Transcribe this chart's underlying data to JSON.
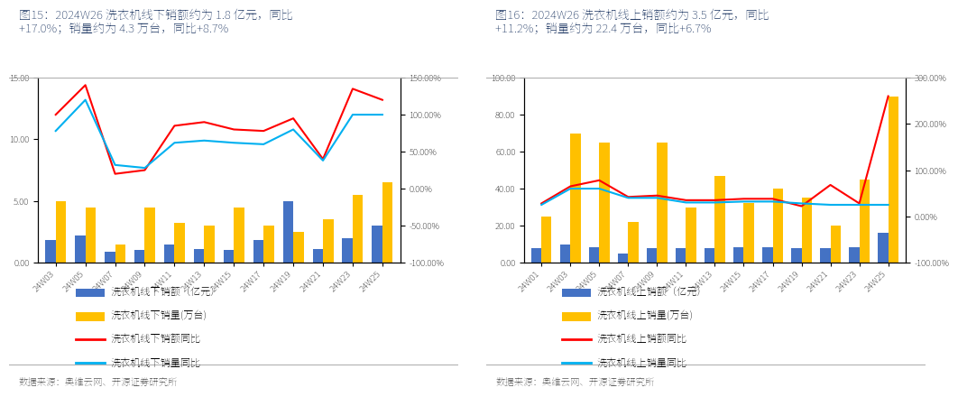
{
  "chart1": {
    "title": "图15：2024W26 洗衣机线下销额约为 1.8 亿元，同比\n+17.0%；销量约为 4.3 万台，同比+8.7%",
    "x_labels": [
      "24W03",
      "24W05",
      "24W07",
      "24W09",
      "24W11",
      "24W13",
      "24W15",
      "24W17",
      "24W19",
      "24W21",
      "24W23",
      "24W25"
    ],
    "sales_value": [
      1.8,
      2.2,
      0.9,
      1.0,
      1.5,
      1.1,
      1.0,
      1.8,
      5.0,
      1.1,
      2.0,
      3.0
    ],
    "sales_volume": [
      5.0,
      4.5,
      1.5,
      4.5,
      3.2,
      3.0,
      4.5,
      3.0,
      2.5,
      3.5,
      5.5,
      6.5
    ],
    "yoy_value": [
      100.0,
      140.0,
      20.0,
      25.0,
      85.0,
      90.0,
      80.0,
      78.0,
      95.0,
      40.0,
      135.0,
      120.0
    ],
    "yoy_volume": [
      78.0,
      120.0,
      32.0,
      28.0,
      62.0,
      65.0,
      62.0,
      60.0,
      80.0,
      38.0,
      100.0,
      100.0
    ],
    "ylim_left": [
      0,
      15
    ],
    "ylim_right": [
      -100,
      150
    ],
    "yticks_left": [
      0.0,
      5.0,
      10.0,
      15.0
    ],
    "ytick_labels_left": [
      "0.00",
      "5.00",
      "10.00",
      "15.00"
    ],
    "yticks_right": [
      -100,
      -50,
      0,
      50,
      100,
      150
    ],
    "ytick_labels_right": [
      "-100.00%",
      "-50.00%",
      "0.00%",
      "50.00%",
      "100.00%",
      "150.00%"
    ],
    "legend": [
      "洗衣机线下销额（亿元）",
      "洗衣机线下销量(万台)",
      "洗衣机线下销额同比",
      "洗衣机线下销量同比"
    ],
    "source": "数据来源：奥维云网、开源证券研究所",
    "bar_color_value": "#4472C4",
    "bar_color_volume": "#FFC000",
    "line_color_yoy_value": "#FF0000",
    "line_color_yoy_volume": "#00B0F0"
  },
  "chart2": {
    "title": "图16：2024W26 洗衣机线上销额约为 3.5 亿元，同比\n+11.2%；销量约为 22.4 万台，同比+6.7%",
    "x_labels": [
      "24W01",
      "24W03",
      "24W05",
      "24W07",
      "24W09",
      "24W11",
      "24W13",
      "24W15",
      "24W17",
      "24W19",
      "24W21",
      "24W23",
      "24W25"
    ],
    "sales_value": [
      8.0,
      10.0,
      8.5,
      5.0,
      8.0,
      8.0,
      8.0,
      8.5,
      8.5,
      8.0,
      8.0,
      8.5,
      16.0
    ],
    "sales_volume": [
      25.0,
      70.0,
      65.0,
      22.0,
      65.0,
      30.0,
      47.0,
      32.0,
      40.0,
      35.0,
      20.0,
      45.0,
      90.0
    ],
    "yoy_value": [
      28.0,
      65.0,
      78.0,
      42.0,
      45.0,
      35.0,
      35.0,
      38.0,
      38.0,
      22.0,
      68.0,
      28.0,
      260.0
    ],
    "yoy_volume": [
      25.0,
      60.0,
      60.0,
      40.0,
      40.0,
      30.0,
      30.0,
      32.0,
      32.0,
      28.0,
      25.0,
      25.0,
      25.0
    ],
    "ylim_left": [
      0,
      100
    ],
    "ylim_right": [
      -100,
      300
    ],
    "yticks_left": [
      0,
      20,
      40,
      60,
      80,
      100
    ],
    "ytick_labels_left": [
      "0.00",
      "20.00",
      "40.00",
      "60.00",
      "80.00",
      "100.00"
    ],
    "yticks_right": [
      -100,
      0,
      100,
      200,
      300
    ],
    "ytick_labels_right": [
      "-100.00%",
      "0.00%",
      "100.00%",
      "200.00%",
      "300.00%"
    ],
    "legend": [
      "洗衣机线上销额（亿元）",
      "洗衣机线上销量(万台)",
      "洗衣机线上销额同比",
      "洗衣机线上销量同比"
    ],
    "source": "数据来源：奥维云网、开源证券研究所",
    "bar_color_value": "#4472C4",
    "bar_color_volume": "#FFC000",
    "line_color_yoy_value": "#FF0000",
    "line_color_yoy_volume": "#00B0F0"
  },
  "bg_color": "#FFFFFF",
  "title_color": "#1F3864",
  "source_color": "#595959"
}
